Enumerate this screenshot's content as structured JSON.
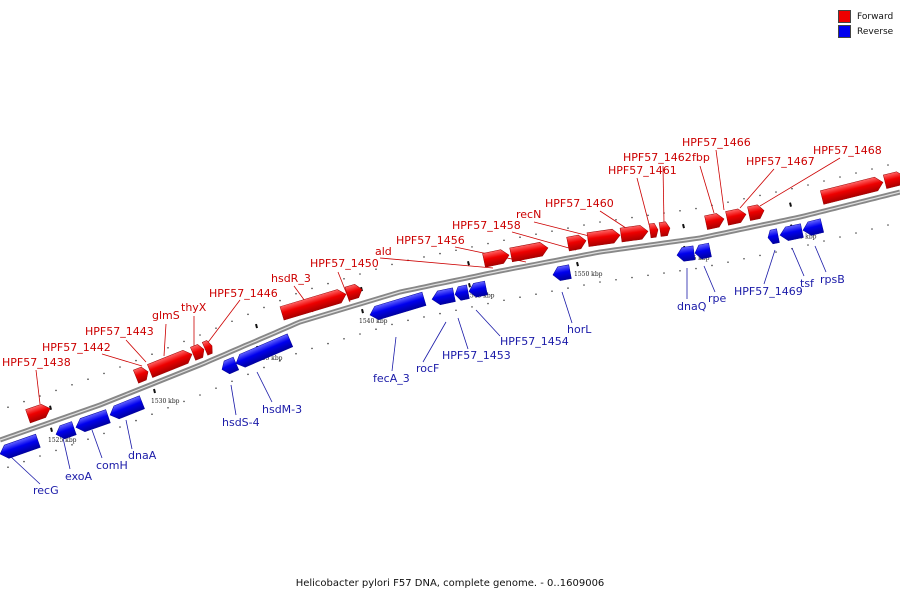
{
  "caption": "Helicobacter pylori F57 DNA, complete genome. - 0..1609006",
  "legend": [
    {
      "label": "Forward",
      "color": "#ee0000"
    },
    {
      "label": "Reverse",
      "color": "#0000ee"
    }
  ],
  "colors": {
    "forward": "#ee0000",
    "reverse": "#0000ee",
    "backbone": "#777777",
    "forward_text": "#cc0000",
    "reverse_text": "#1a1aa8"
  },
  "ticks_kbp": [
    "1525 kbp",
    "1530 kbp",
    "1535 kbp",
    "1540 kbp",
    "1545 kbp",
    "1550 kbp",
    "1555 kbp",
    "1560 kbp"
  ],
  "forward_labels": [
    "HPF57_1438",
    "HPF57_1442",
    "HPF57_1443",
    "glmS",
    "thyX",
    "HPF57_1446",
    "hsdR_3",
    "HPF57_1450",
    "ald",
    "HPF57_1456",
    "HPF57_1458",
    "recN",
    "HPF57_1460",
    "HPF57_1461",
    "HPF57_1462",
    "fbp",
    "HPF57_1466",
    "HPF57_1467",
    "HPF57_1468"
  ],
  "reverse_labels": [
    "recG",
    "exoA",
    "comH",
    "dnaA",
    "hsdS-4",
    "hsdM-3",
    "fecA_3",
    "rocF",
    "HPF57_1453",
    "HPF57_1454",
    "horL",
    "dnaQ",
    "rpe",
    "HPF57_1469",
    "tsf",
    "rpsB"
  ]
}
